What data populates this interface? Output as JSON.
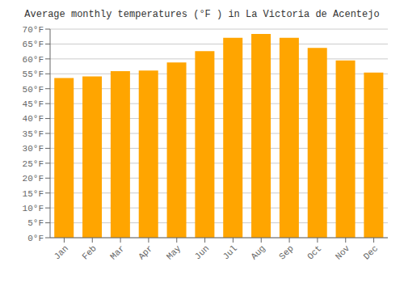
{
  "chart_data": {
    "type": "bar",
    "title": "Average monthly temperatures (°F ) in La Victoria de Acentejo",
    "categories": [
      "Jan",
      "Feb",
      "Mar",
      "Apr",
      "May",
      "Jun",
      "Jul",
      "Aug",
      "Sep",
      "Oct",
      "Nov",
      "Dec"
    ],
    "values": [
      53.6,
      54.1,
      55.9,
      56.1,
      58.8,
      62.6,
      67.1,
      68.4,
      67.1,
      63.7,
      59.5,
      55.4
    ],
    "color": "#FFA500",
    "ylim": [
      0,
      70
    ],
    "yticks": [
      {
        "value": 0,
        "label": "0°F"
      },
      {
        "value": 5,
        "label": "5°F"
      },
      {
        "value": 10,
        "label": "10°F"
      },
      {
        "value": 15,
        "label": "15°F"
      },
      {
        "value": 20,
        "label": "20°F"
      },
      {
        "value": 25,
        "label": "25°F"
      },
      {
        "value": 30,
        "label": "30°F"
      },
      {
        "value": 35,
        "label": "35°F"
      },
      {
        "value": 40,
        "label": "40°F"
      },
      {
        "value": 45,
        "label": "45°F"
      },
      {
        "value": 50,
        "label": "50°F"
      },
      {
        "value": 55,
        "label": "55°F"
      },
      {
        "value": 60,
        "label": "60°F"
      },
      {
        "value": 65,
        "label": "65°F"
      },
      {
        "value": 70,
        "label": "70°F"
      }
    ],
    "grid": true
  }
}
